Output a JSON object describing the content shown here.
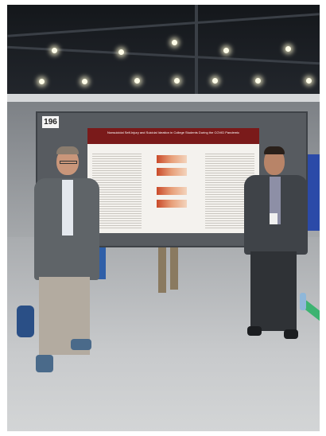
{
  "photo": {
    "scene": "conference-poster-session",
    "booth_number": "196"
  },
  "poster": {
    "title": "Nonsuicidal Self-Injury and Suicidal Ideation in College Students During the COVID Pandemic"
  },
  "colors": {
    "poster_header": "#7a1a1a",
    "poster_board": "#575b60",
    "floor": "#c8cacc",
    "ceiling": "#14171b",
    "blue_banner": "#2b4aa8"
  }
}
